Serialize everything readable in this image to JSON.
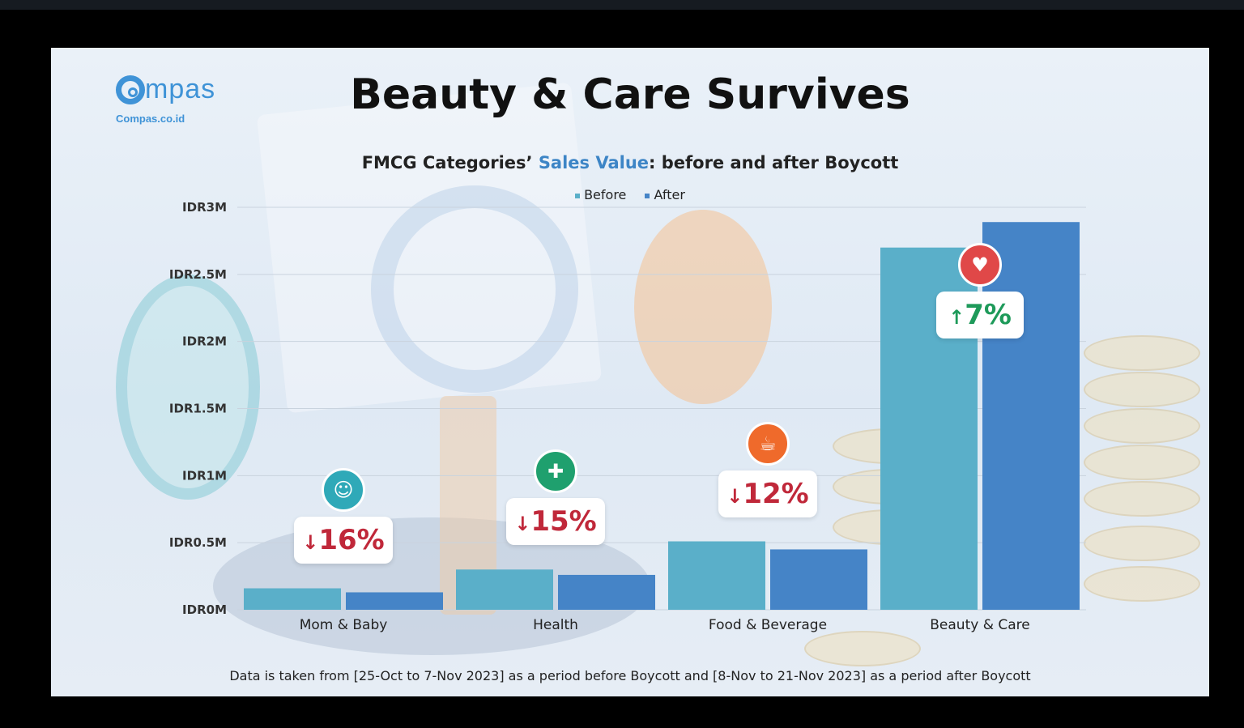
{
  "title": "Beauty & Care Survives",
  "subtitle": {
    "prefix": "FMCG Categories’ ",
    "highlight": "Sales Value",
    "suffix": ": before and after Boycott"
  },
  "logo": {
    "word": "mpas",
    "sub": "Compas.co.id"
  },
  "footnote": "Data is taken from [25-Oct to 7-Nov 2023] as a period before Boycott and [8-Nov to 21-Nov 2023] as a period after Boycott",
  "colors": {
    "before": "#5aafc9",
    "after": "#4584c7",
    "down": "#c0283a",
    "up": "#1e9a5a"
  },
  "badges": [
    {
      "arrow": "↓",
      "text": "16%",
      "direction": "down",
      "icon": "baby-icon",
      "icon_color": "#2fa9b8"
    },
    {
      "arrow": "↓",
      "text": "15%",
      "direction": "down",
      "icon": "health-icon",
      "icon_color": "#1fa06e"
    },
    {
      "arrow": "↓",
      "text": "12%",
      "direction": "down",
      "icon": "food-icon",
      "icon_color": "#ef6a2b"
    },
    {
      "arrow": "↑",
      "text": "7%",
      "direction": "up",
      "icon": "beauty-icon",
      "icon_color": "#e04848"
    }
  ],
  "chart_data": {
    "type": "bar",
    "title": "FMCG Categories’ Sales Value: before and after Boycott",
    "categories": [
      "Mom & Baby",
      "Health",
      "Food & Beverage",
      "Beauty & Care"
    ],
    "series": [
      {
        "name": "Before",
        "values": [
          0.16,
          0.3,
          0.51,
          2.7
        ]
      },
      {
        "name": "After",
        "values": [
          0.13,
          0.26,
          0.45,
          2.89
        ]
      }
    ],
    "y_ticks": [
      "IDR0M",
      "IDR0.5M",
      "IDR1M",
      "IDR1.5M",
      "IDR2M",
      "IDR2.5M",
      "IDR3M"
    ],
    "y_tick_values": [
      0,
      0.5,
      1,
      1.5,
      2,
      2.5,
      3
    ],
    "ylim": [
      0,
      3
    ],
    "grid": true,
    "legend_position": "top-center"
  }
}
